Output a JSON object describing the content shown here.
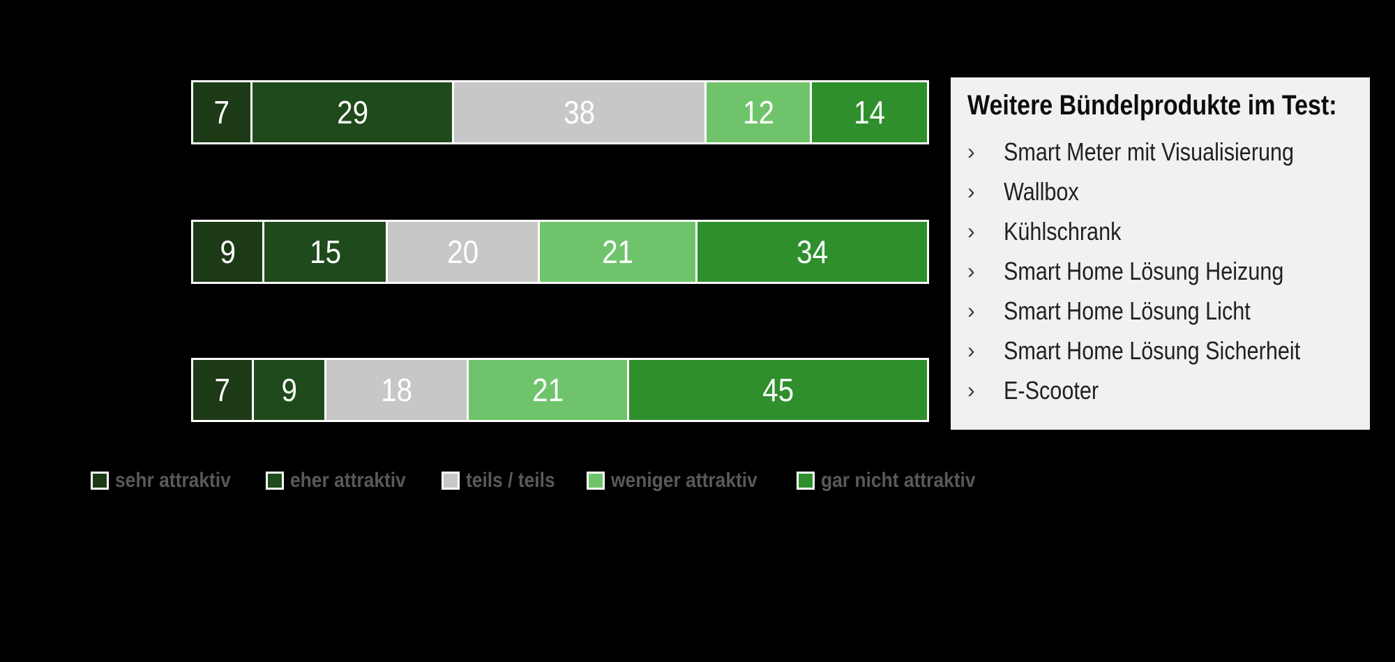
{
  "page": {
    "background_color": "#000000"
  },
  "chart_data": {
    "type": "bar",
    "orientation": "horizontal",
    "stacked": true,
    "normalized_to_100_percent": true,
    "categories": [
      "",
      "",
      ""
    ],
    "series": [
      {
        "name": "sehr attraktiv",
        "color": "#1d3a17",
        "values": [
          7,
          9,
          7
        ]
      },
      {
        "name": "eher attraktiv",
        "color": "#1f4a1b",
        "values": [
          29,
          15,
          9
        ]
      },
      {
        "name": "teils / teils",
        "color": "#c7c7c7",
        "values": [
          38,
          20,
          18
        ]
      },
      {
        "name": "weniger attraktiv",
        "color": "#6fc46b",
        "values": [
          12,
          21,
          21
        ]
      },
      {
        "name": "gar nicht attraktiv",
        "color": "#2e8f2c",
        "values": [
          14,
          34,
          45
        ]
      }
    ],
    "rows": [
      [
        7,
        29,
        38,
        12,
        14
      ],
      [
        9,
        15,
        20,
        21,
        34
      ],
      [
        7,
        9,
        18,
        21,
        45
      ]
    ],
    "data_labels": {
      "position": "inside-center",
      "color": "#ffffff"
    },
    "bar_border_color": "#ffffff",
    "legend_position": "bottom",
    "legend_text_color": "#595959"
  },
  "side_panel": {
    "background_color": "#f1f1f1",
    "title": "Weitere Bündelprodukte im Test:",
    "bullet": "›",
    "items": [
      "Smart Meter mit Visualisierung",
      "Wallbox",
      "Kühlschrank",
      "Smart Home Lösung Heizung",
      "Smart Home Lösung Licht",
      "Smart Home Lösung Sicherheit",
      "E-Scooter"
    ]
  }
}
